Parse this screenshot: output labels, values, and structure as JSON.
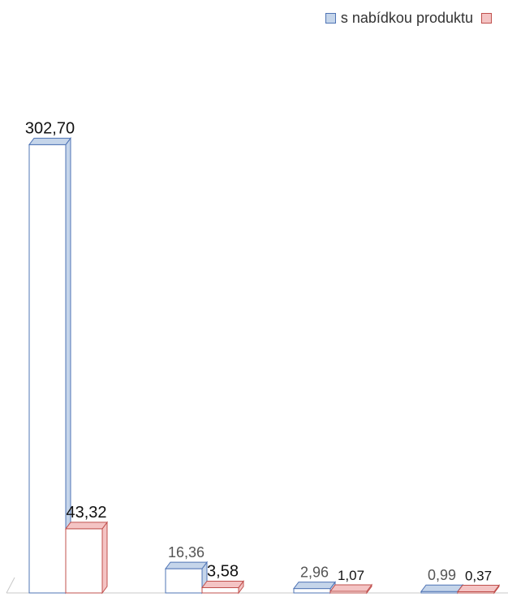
{
  "chart_data": {
    "type": "bar",
    "style": "3d",
    "categories": [
      "",
      "",
      "",
      ""
    ],
    "series": [
      {
        "name": "s nabídkou produktu",
        "values": [
          302.7,
          16.36,
          2.96,
          0.99
        ],
        "labels": [
          "302,70",
          "16,36",
          "2,96",
          "0,99"
        ],
        "fill": "#ffffff",
        "side": "#c5d5ea",
        "stroke": "#4f74b5",
        "label_color": "#111111"
      },
      {
        "name": "",
        "values": [
          43.32,
          3.58,
          1.07,
          0.37
        ],
        "labels": [
          "43,32",
          "3,58",
          "1,07",
          "0,37"
        ],
        "fill": "#ffffff",
        "side": "#f4c4c4",
        "stroke": "#c0504d",
        "label_color": "#111111"
      }
    ],
    "ylim": [
      0,
      310
    ],
    "grid": false,
    "legend_position": "top-right",
    "title": "",
    "xlabel": "",
    "ylabel": ""
  }
}
